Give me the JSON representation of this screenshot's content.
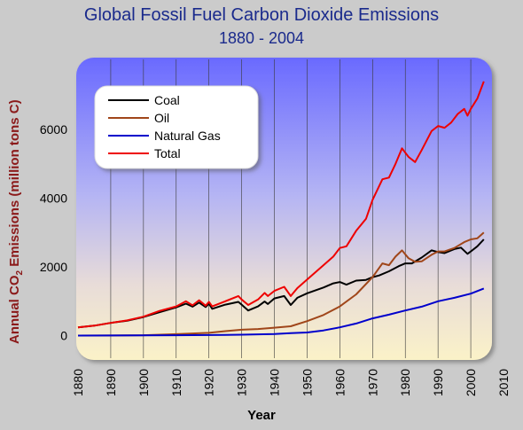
{
  "title_line1": "Global Fossil Fuel Carbon Dioxide Emissions",
  "title_line2": "1880 - 2004",
  "ylabel_main": "Annual CO",
  "ylabel_sub": "2",
  "ylabel_rest": " Emissions (million tons C)",
  "xlabel": "Year",
  "chart_data": {
    "type": "line",
    "title": "Global Fossil Fuel Carbon Dioxide Emissions",
    "subtitle": "1880 - 2004",
    "xlabel": "Year",
    "ylabel": "Annual CO2 Emissions (million tons C)",
    "xlim": [
      1880,
      2010
    ],
    "ylim": [
      -250,
      8000
    ],
    "x_ticks": [
      "1880",
      "1890",
      "1900",
      "1910",
      "1920",
      "1930",
      "1940",
      "1950",
      "1960",
      "1970",
      "1980",
      "1990",
      "2000",
      "2010"
    ],
    "y_ticks": [
      0,
      2000,
      4000,
      6000
    ],
    "y_tick_labels": [
      "0",
      "2000",
      "4000",
      "6000"
    ],
    "grid": "vertical",
    "legend_position": "top-left",
    "series": [
      {
        "name": "Coal",
        "color": "#000000",
        "points": [
          [
            1880,
            240
          ],
          [
            1885,
            290
          ],
          [
            1890,
            370
          ],
          [
            1895,
            430
          ],
          [
            1900,
            540
          ],
          [
            1905,
            680
          ],
          [
            1910,
            820
          ],
          [
            1913,
            930
          ],
          [
            1915,
            840
          ],
          [
            1917,
            960
          ],
          [
            1919,
            830
          ],
          [
            1920,
            930
          ],
          [
            1921,
            780
          ],
          [
            1925,
            900
          ],
          [
            1929,
            980
          ],
          [
            1930,
            900
          ],
          [
            1932,
            730
          ],
          [
            1935,
            850
          ],
          [
            1937,
            990
          ],
          [
            1938,
            920
          ],
          [
            1940,
            1080
          ],
          [
            1943,
            1150
          ],
          [
            1945,
            890
          ],
          [
            1947,
            1100
          ],
          [
            1950,
            1230
          ],
          [
            1955,
            1400
          ],
          [
            1958,
            1520
          ],
          [
            1960,
            1560
          ],
          [
            1962,
            1480
          ],
          [
            1965,
            1600
          ],
          [
            1968,
            1620
          ],
          [
            1970,
            1700
          ],
          [
            1972,
            1750
          ],
          [
            1975,
            1870
          ],
          [
            1978,
            2020
          ],
          [
            1980,
            2100
          ],
          [
            1982,
            2100
          ],
          [
            1985,
            2270
          ],
          [
            1988,
            2480
          ],
          [
            1990,
            2430
          ],
          [
            1992,
            2400
          ],
          [
            1995,
            2520
          ],
          [
            1997,
            2560
          ],
          [
            1999,
            2380
          ],
          [
            2000,
            2450
          ],
          [
            2002,
            2600
          ],
          [
            2004,
            2800
          ]
        ]
      },
      {
        "name": "Oil",
        "color": "#a0461a",
        "points": [
          [
            1880,
            0
          ],
          [
            1890,
            3
          ],
          [
            1900,
            10
          ],
          [
            1910,
            40
          ],
          [
            1920,
            80
          ],
          [
            1925,
            130
          ],
          [
            1930,
            170
          ],
          [
            1935,
            190
          ],
          [
            1940,
            230
          ],
          [
            1945,
            270
          ],
          [
            1950,
            420
          ],
          [
            1955,
            600
          ],
          [
            1960,
            850
          ],
          [
            1965,
            1200
          ],
          [
            1970,
            1700
          ],
          [
            1973,
            2100
          ],
          [
            1975,
            2050
          ],
          [
            1977,
            2300
          ],
          [
            1979,
            2480
          ],
          [
            1981,
            2250
          ],
          [
            1983,
            2150
          ],
          [
            1985,
            2160
          ],
          [
            1988,
            2350
          ],
          [
            1990,
            2450
          ],
          [
            1992,
            2450
          ],
          [
            1995,
            2550
          ],
          [
            1998,
            2720
          ],
          [
            2000,
            2800
          ],
          [
            2002,
            2830
          ],
          [
            2004,
            3000
          ]
        ]
      },
      {
        "name": "Natural Gas",
        "color": "#0000cc",
        "points": [
          [
            1880,
            0
          ],
          [
            1900,
            5
          ],
          [
            1910,
            10
          ],
          [
            1920,
            15
          ],
          [
            1930,
            25
          ],
          [
            1940,
            45
          ],
          [
            1945,
            70
          ],
          [
            1950,
            90
          ],
          [
            1955,
            150
          ],
          [
            1960,
            240
          ],
          [
            1965,
            350
          ],
          [
            1970,
            500
          ],
          [
            1975,
            610
          ],
          [
            1980,
            730
          ],
          [
            1985,
            840
          ],
          [
            1990,
            1000
          ],
          [
            1995,
            1100
          ],
          [
            2000,
            1220
          ],
          [
            2004,
            1370
          ]
        ]
      },
      {
        "name": "Total",
        "color": "#ee0000",
        "points": [
          [
            1880,
            240
          ],
          [
            1885,
            290
          ],
          [
            1890,
            370
          ],
          [
            1895,
            440
          ],
          [
            1900,
            550
          ],
          [
            1905,
            720
          ],
          [
            1910,
            850
          ],
          [
            1913,
            1000
          ],
          [
            1915,
            880
          ],
          [
            1917,
            1030
          ],
          [
            1919,
            870
          ],
          [
            1920,
            980
          ],
          [
            1921,
            850
          ],
          [
            1925,
            1000
          ],
          [
            1929,
            1150
          ],
          [
            1930,
            1050
          ],
          [
            1932,
            890
          ],
          [
            1935,
            1050
          ],
          [
            1937,
            1240
          ],
          [
            1938,
            1150
          ],
          [
            1940,
            1300
          ],
          [
            1943,
            1420
          ],
          [
            1945,
            1150
          ],
          [
            1947,
            1380
          ],
          [
            1950,
            1630
          ],
          [
            1955,
            2050
          ],
          [
            1958,
            2300
          ],
          [
            1960,
            2550
          ],
          [
            1962,
            2600
          ],
          [
            1965,
            3050
          ],
          [
            1968,
            3400
          ],
          [
            1970,
            3950
          ],
          [
            1973,
            4550
          ],
          [
            1975,
            4600
          ],
          [
            1977,
            5000
          ],
          [
            1979,
            5450
          ],
          [
            1981,
            5200
          ],
          [
            1983,
            5050
          ],
          [
            1985,
            5400
          ],
          [
            1988,
            5950
          ],
          [
            1990,
            6100
          ],
          [
            1992,
            6050
          ],
          [
            1994,
            6200
          ],
          [
            1996,
            6450
          ],
          [
            1998,
            6600
          ],
          [
            1999,
            6400
          ],
          [
            2000,
            6600
          ],
          [
            2002,
            6900
          ],
          [
            2004,
            7400
          ]
        ]
      }
    ]
  }
}
